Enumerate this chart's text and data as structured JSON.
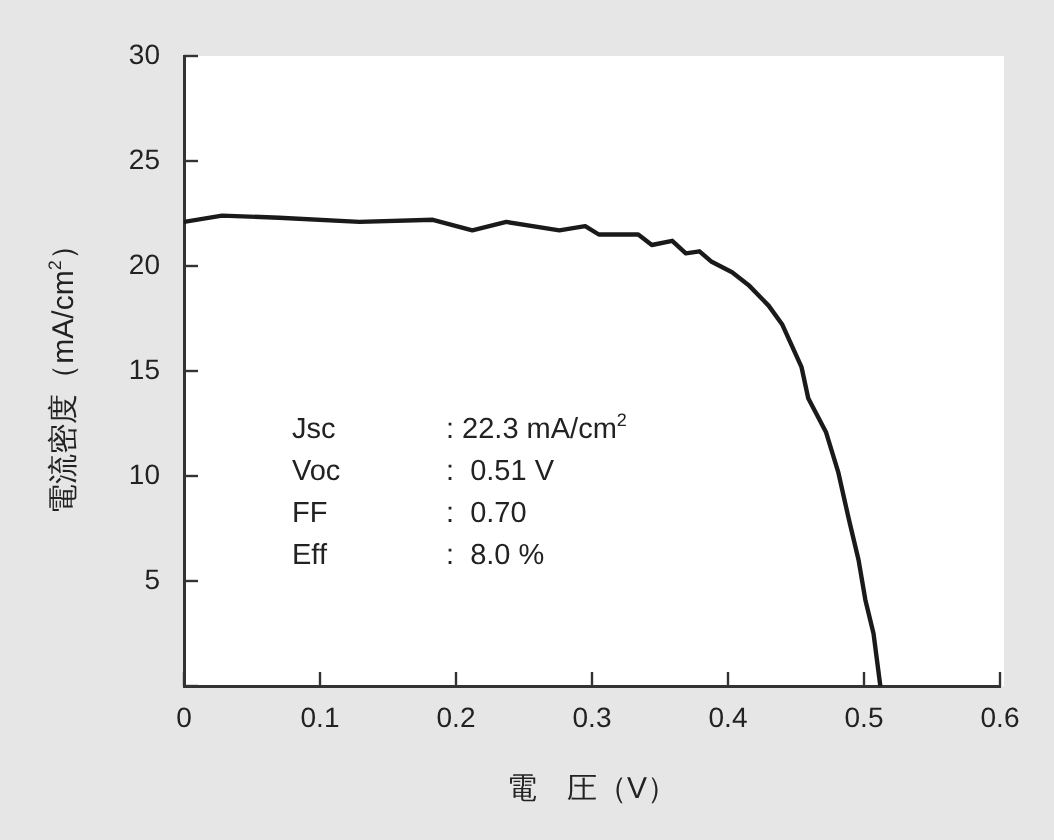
{
  "chart_data": {
    "type": "line",
    "xlabel": "電　圧（V）",
    "ylabel": "電流密度（mA/cm$^{2}$）",
    "x": [
      0,
      0.028,
      0.07,
      0.129,
      0.183,
      0.212,
      0.237,
      0.276,
      0.295,
      0.305,
      0.334,
      0.344,
      0.359,
      0.369,
      0.379,
      0.388,
      0.403,
      0.415,
      0.43,
      0.44,
      0.454,
      0.459,
      0.472,
      0.481,
      0.489,
      0.496,
      0.501,
      0.507,
      0.512
    ],
    "series": [
      {
        "color": "#1a1a1a",
        "values": [
          22.1,
          22.4,
          22.3,
          22.1,
          22.2,
          21.7,
          22.1,
          21.7,
          21.9,
          21.5,
          21.5,
          21.0,
          21.2,
          20.6,
          20.7,
          20.2,
          19.7,
          19.1,
          18.1,
          17.2,
          15.2,
          13.7,
          12.1,
          10.2,
          7.9,
          6.0,
          4.1,
          2.5,
          0
        ]
      }
    ],
    "xlim": [
      0,
      0.6
    ],
    "xticks": [
      0,
      0.1,
      0.2,
      0.3,
      0.4,
      0.5,
      0.6
    ],
    "ylim": [
      0,
      30
    ],
    "yticks": [
      {
        "value": 0,
        "label": null
      },
      5,
      10,
      15,
      20,
      25,
      30
    ],
    "annotations": [
      "Jsc\t: 22.3 mA/cm$^{2}$",
      "Voc\t:  0.51 V",
      "FF\t:  0.70",
      "Eff\t:  8.0 %"
    ],
    "grid": false,
    "legend": false,
    "marker": "none",
    "line_style": "solid"
  }
}
